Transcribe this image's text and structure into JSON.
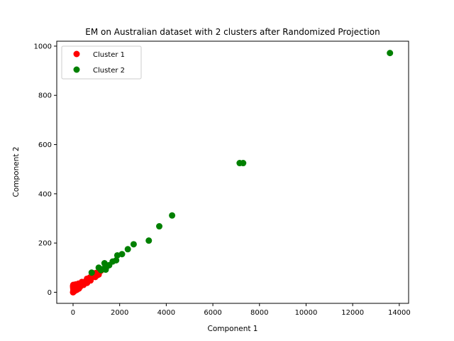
{
  "chart_data": {
    "type": "scatter",
    "title": "EM on Australian dataset with 2 clusters after Randomized Projection",
    "xlabel": "Component 1",
    "ylabel": "Component 2",
    "xlim": [
      -700,
      14400
    ],
    "ylim": [
      -45,
      1020
    ],
    "xticks": [
      0,
      2000,
      4000,
      6000,
      8000,
      10000,
      12000,
      14000
    ],
    "yticks": [
      0,
      200,
      400,
      600,
      800,
      1000
    ],
    "grid": false,
    "legend_position": "top-left",
    "series": [
      {
        "name": "Cluster 1",
        "color": "#ff0000",
        "points": [
          [
            0,
            0
          ],
          [
            10,
            5
          ],
          [
            20,
            2
          ],
          [
            30,
            8
          ],
          [
            15,
            12
          ],
          [
            5,
            18
          ],
          [
            25,
            20
          ],
          [
            40,
            15
          ],
          [
            50,
            5
          ],
          [
            60,
            10
          ],
          [
            70,
            18
          ],
          [
            80,
            6
          ],
          [
            90,
            22
          ],
          [
            100,
            12
          ],
          [
            120,
            15
          ],
          [
            140,
            20
          ],
          [
            160,
            10
          ],
          [
            180,
            25
          ],
          [
            200,
            18
          ],
          [
            220,
            28
          ],
          [
            250,
            15
          ],
          [
            280,
            25
          ],
          [
            300,
            22
          ],
          [
            320,
            32
          ],
          [
            350,
            28
          ],
          [
            400,
            35
          ],
          [
            450,
            30
          ],
          [
            500,
            40
          ],
          [
            550,
            45
          ],
          [
            600,
            38
          ],
          [
            650,
            50
          ],
          [
            700,
            55
          ],
          [
            750,
            48
          ],
          [
            800,
            60
          ],
          [
            850,
            65
          ],
          [
            900,
            70
          ],
          [
            950,
            62
          ],
          [
            1000,
            75
          ],
          [
            1050,
            80
          ],
          [
            1100,
            72
          ],
          [
            1150,
            85
          ],
          [
            1200,
            88
          ],
          [
            0,
            25
          ],
          [
            10,
            30
          ],
          [
            20,
            15
          ],
          [
            35,
            25
          ],
          [
            60,
            28
          ],
          [
            110,
            32
          ],
          [
            150,
            30
          ],
          [
            230,
            35
          ],
          [
            380,
            42
          ],
          [
            600,
            55
          ],
          [
            720,
            60
          ],
          [
            880,
            72
          ],
          [
            970,
            78
          ],
          [
            1020,
            68
          ]
        ]
      },
      {
        "name": "Cluster 2",
        "color": "#008000",
        "points": [
          [
            800,
            80
          ],
          [
            1100,
            100
          ],
          [
            1200,
            90
          ],
          [
            1300,
            95
          ],
          [
            1350,
            118
          ],
          [
            1400,
            92
          ],
          [
            1450,
            105
          ],
          [
            1550,
            110
          ],
          [
            1700,
            125
          ],
          [
            1850,
            130
          ],
          [
            1900,
            150
          ],
          [
            2100,
            155
          ],
          [
            2350,
            175
          ],
          [
            2600,
            195
          ],
          [
            3250,
            210
          ],
          [
            3700,
            268
          ],
          [
            4250,
            312
          ],
          [
            7150,
            525
          ],
          [
            7300,
            525
          ],
          [
            13600,
            972
          ]
        ]
      }
    ]
  }
}
